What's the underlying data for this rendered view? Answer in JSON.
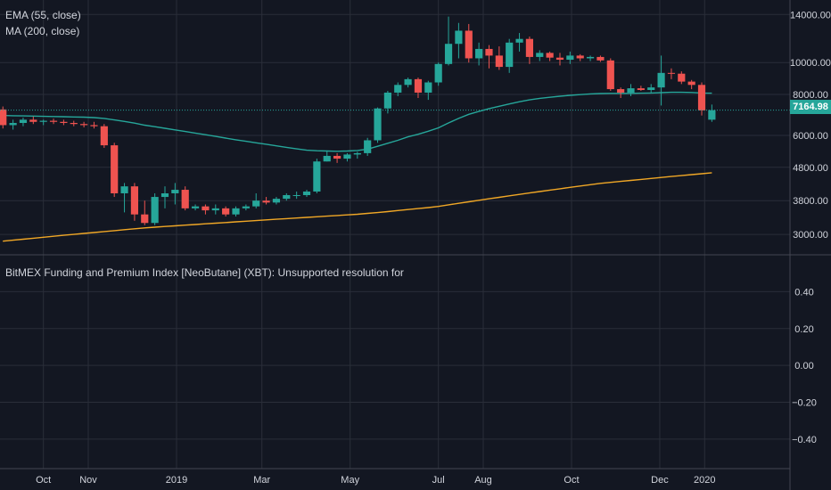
{
  "legend": {
    "indicators": [
      "EMA (55, close)",
      "MA (200, close)"
    ],
    "sub_pane_title": "BitMEX Funding and Premium Index [NeoButane] (XBT): Unsupported resolution for"
  },
  "last_price_label": "7164.98",
  "colors": {
    "background": "#131722",
    "grid": "#2a2e39",
    "up": "#26a69a",
    "down": "#ef5350",
    "ema": "#26a69a",
    "ma": "#f0a726",
    "price_line": "#26a69a",
    "axis_text": "#d1d4dc"
  },
  "chart_data": [
    {
      "type": "candlestick",
      "title": "",
      "price_scale": "log",
      "y_tick_labels": [
        "14000.00",
        "10000.00",
        "8000.00",
        "6000.00",
        "4800.00",
        "3800.00",
        "3000.00"
      ],
      "y_ticks": [
        14000,
        10000,
        8000,
        6000,
        4800,
        3800,
        3000
      ],
      "ylim": [
        2600,
        15500
      ],
      "x_tick_labels": [
        "Oct",
        "Nov",
        "2019",
        "Mar",
        "May",
        "Jul",
        "Aug",
        "Oct",
        "Dec",
        "2020"
      ],
      "x_ticks": [
        "2018-10-01",
        "2018-11-01",
        "2019-01-01",
        "2019-03-01",
        "2019-05-01",
        "2019-07-01",
        "2019-08-01",
        "2019-10-01",
        "2019-12-01",
        "2020-01-01"
      ],
      "xlim": [
        "2018-09-01",
        "2020-02-29"
      ],
      "interval": "weekly",
      "first_candle": "2018-09-03",
      "candles": [
        [
          7200,
          7350,
          6300,
          6450
        ],
        [
          6450,
          6700,
          6250,
          6550
        ],
        [
          6550,
          6800,
          6400,
          6700
        ],
        [
          6700,
          6850,
          6500,
          6600
        ],
        [
          6600,
          6700,
          6450,
          6650
        ],
        [
          6650,
          6750,
          6500,
          6600
        ],
        [
          6600,
          6700,
          6450,
          6550
        ],
        [
          6550,
          6650,
          6400,
          6500
        ],
        [
          6500,
          6600,
          6350,
          6450
        ],
        [
          6450,
          6600,
          6300,
          6400
        ],
        [
          6400,
          6500,
          5500,
          5600
        ],
        [
          5600,
          5700,
          3900,
          4000
        ],
        [
          4000,
          4300,
          3500,
          4200
        ],
        [
          4200,
          4300,
          3300,
          3450
        ],
        [
          3450,
          3800,
          3200,
          3250
        ],
        [
          3250,
          4000,
          3200,
          3900
        ],
        [
          3900,
          4200,
          3600,
          4000
        ],
        [
          4000,
          4300,
          3700,
          4100
        ],
        [
          4100,
          4200,
          3550,
          3600
        ],
        [
          3600,
          3700,
          3550,
          3650
        ],
        [
          3650,
          3700,
          3450,
          3550
        ],
        [
          3550,
          3700,
          3450,
          3600
        ],
        [
          3600,
          3650,
          3400,
          3450
        ],
        [
          3450,
          3650,
          3400,
          3600
        ],
        [
          3600,
          3700,
          3550,
          3650
        ],
        [
          3650,
          4000,
          3600,
          3800
        ],
        [
          3800,
          3900,
          3700,
          3750
        ],
        [
          3750,
          3900,
          3700,
          3850
        ],
        [
          3850,
          4000,
          3800,
          3950
        ],
        [
          3950,
          4050,
          3850,
          3950
        ],
        [
          3950,
          4100,
          3900,
          4050
        ],
        [
          4050,
          5100,
          4000,
          5000
        ],
        [
          5000,
          5400,
          5000,
          5200
        ],
        [
          5200,
          5300,
          4950,
          5100
        ],
        [
          5100,
          5300,
          5000,
          5250
        ],
        [
          5250,
          5350,
          5100,
          5300
        ],
        [
          5300,
          5900,
          5200,
          5800
        ],
        [
          5800,
          7300,
          5700,
          7250
        ],
        [
          7250,
          8200,
          7000,
          8100
        ],
        [
          8100,
          8700,
          7900,
          8550
        ],
        [
          8550,
          9000,
          8400,
          8900
        ],
        [
          8900,
          9000,
          7800,
          8100
        ],
        [
          8100,
          8800,
          7700,
          8700
        ],
        [
          8700,
          10000,
          8500,
          9900
        ],
        [
          9900,
          13800,
          9800,
          11400
        ],
        [
          11400,
          13200,
          10300,
          12500
        ],
        [
          12500,
          13100,
          10000,
          10300
        ],
        [
          10300,
          11500,
          9800,
          11000
        ],
        [
          11000,
          11300,
          9600,
          10500
        ],
        [
          10500,
          11200,
          9500,
          9700
        ],
        [
          9700,
          11800,
          9300,
          11500
        ],
        [
          11500,
          12300,
          10800,
          11800
        ],
        [
          11800,
          12000,
          9900,
          10400
        ],
        [
          10400,
          10900,
          10100,
          10700
        ],
        [
          10700,
          10800,
          10100,
          10350
        ],
        [
          10350,
          10700,
          9800,
          10200
        ],
        [
          10200,
          10800,
          9900,
          10500
        ],
        [
          10500,
          10600,
          10100,
          10300
        ],
        [
          10300,
          10500,
          10100,
          10400
        ],
        [
          10400,
          10500,
          10050,
          10150
        ],
        [
          10150,
          10300,
          8200,
          8300
        ],
        [
          8300,
          8400,
          7800,
          8100
        ],
        [
          8100,
          8600,
          7900,
          8350
        ],
        [
          8350,
          8500,
          8200,
          8250
        ],
        [
          8250,
          8600,
          8100,
          8400
        ],
        [
          8400,
          10500,
          7400,
          9300
        ],
        [
          9300,
          9600,
          8900,
          9250
        ],
        [
          9250,
          9400,
          8600,
          8750
        ],
        [
          8750,
          8850,
          8300,
          8550
        ],
        [
          8550,
          8700,
          6900,
          7150
        ],
        [
          6700,
          7450,
          6600,
          7165
        ]
      ],
      "series": [
        {
          "name": "EMA (55, close)",
          "values": [
            6900,
            6890,
            6880,
            6870,
            6860,
            6850,
            6840,
            6830,
            6820,
            6800,
            6760,
            6690,
            6620,
            6540,
            6450,
            6380,
            6310,
            6240,
            6170,
            6100,
            6030,
            5960,
            5890,
            5820,
            5760,
            5700,
            5640,
            5580,
            5520,
            5460,
            5410,
            5390,
            5380,
            5370,
            5380,
            5400,
            5450,
            5560,
            5680,
            5800,
            5940,
            6050,
            6180,
            6330,
            6550,
            6760,
            6960,
            7100,
            7240,
            7360,
            7480,
            7600,
            7700,
            7780,
            7840,
            7900,
            7950,
            7990,
            8030,
            8050,
            8060,
            8060,
            8060,
            8070,
            8080,
            8100,
            8120,
            8120,
            8110,
            8080,
            8070
          ]
        },
        {
          "name": "MA (200, close)",
          "values": [
            2860,
            2880,
            2900,
            2920,
            2940,
            2960,
            2980,
            3000,
            3020,
            3040,
            3060,
            3080,
            3100,
            3120,
            3140,
            3155,
            3170,
            3185,
            3200,
            3215,
            3230,
            3245,
            3260,
            3275,
            3290,
            3305,
            3320,
            3335,
            3350,
            3365,
            3380,
            3395,
            3410,
            3425,
            3440,
            3455,
            3475,
            3495,
            3520,
            3545,
            3570,
            3595,
            3620,
            3650,
            3690,
            3730,
            3770,
            3810,
            3850,
            3890,
            3930,
            3970,
            4010,
            4050,
            4090,
            4130,
            4170,
            4210,
            4250,
            4290,
            4320,
            4350,
            4380,
            4410,
            4440,
            4470,
            4500,
            4530,
            4560,
            4590,
            4620
          ]
        }
      ]
    },
    {
      "type": "line",
      "title": "",
      "series": [],
      "y_tick_labels": [
        "0.40",
        "0.20",
        "0.00",
        "−0.20",
        "−0.40"
      ],
      "y_ticks": [
        0.4,
        0.2,
        0.0,
        -0.2,
        -0.4
      ],
      "ylim": [
        -0.56,
        0.6
      ]
    }
  ]
}
